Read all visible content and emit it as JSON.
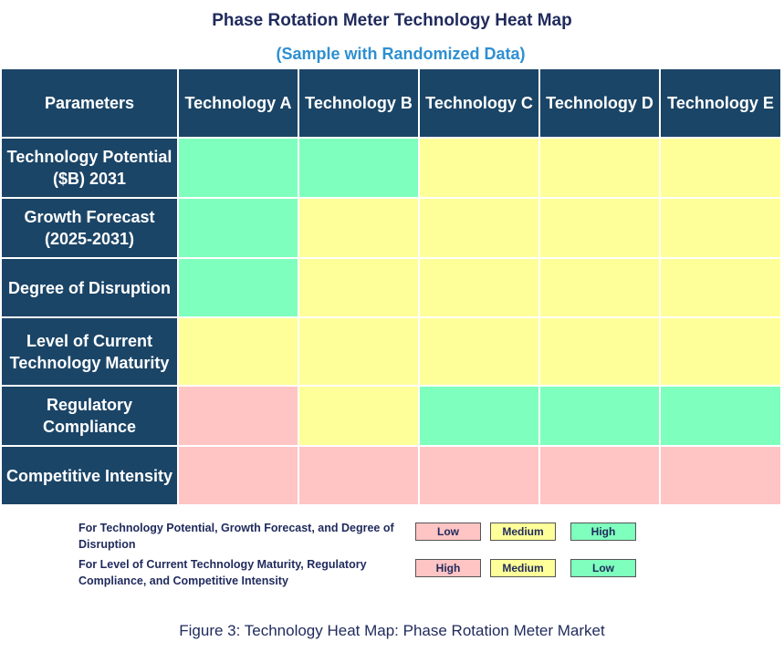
{
  "header": {
    "title": "Phase Rotation Meter Technology Heat Map",
    "subtitle": "(Sample with Randomized Data)"
  },
  "table": {
    "header_color": "#1b4567",
    "columns": [
      "Parameters",
      "Technology A",
      "Technology B",
      "Technology C",
      "Technology D",
      "Technology E"
    ],
    "rows": [
      {
        "label": "Technology Potential ($B) 2031",
        "cells": [
          "#7fffbd",
          "#7fffbd",
          "#ffff99",
          "#ffff99",
          "#ffff99"
        ]
      },
      {
        "label": "Growth Forecast (2025-2031)",
        "cells": [
          "#7fffbd",
          "#ffff99",
          "#ffff99",
          "#ffff99",
          "#ffff99"
        ]
      },
      {
        "label": "Degree of Disruption",
        "cells": [
          "#7fffbd",
          "#ffff99",
          "#ffff99",
          "#ffff99",
          "#ffff99"
        ]
      },
      {
        "label": "Level of Current Technology Maturity",
        "cells": [
          "#ffff99",
          "#ffff99",
          "#ffff99",
          "#ffff99",
          "#ffff99"
        ]
      },
      {
        "label": "Regulatory Compliance",
        "cells": [
          "#ffc4c4",
          "#ffff99",
          "#7fffbd",
          "#7fffbd",
          "#7fffbd"
        ]
      },
      {
        "label": "Competitive Intensity",
        "cells": [
          "#ffc4c4",
          "#ffc4c4",
          "#ffc4c4",
          "#ffc4c4",
          "#ffc4c4"
        ]
      }
    ]
  },
  "legend": [
    {
      "text": "For Technology Potential, Growth Forecast, and Degree of Disruption",
      "items": [
        {
          "label": "Low",
          "color": "#ffc4c4"
        },
        {
          "label": "Medium",
          "color": "#ffff99"
        },
        {
          "label": "High",
          "color": "#7fffbd"
        }
      ]
    },
    {
      "text": "For Level of Current Technology Maturity, Regulatory Compliance, and Competitive Intensity",
      "items": [
        {
          "label": "High",
          "color": "#ffc4c4"
        },
        {
          "label": "Medium",
          "color": "#ffff99"
        },
        {
          "label": "Low",
          "color": "#7fffbd"
        }
      ]
    }
  ],
  "caption": "Figure 3: Technology Heat Map: Phase Rotation Meter Market"
}
